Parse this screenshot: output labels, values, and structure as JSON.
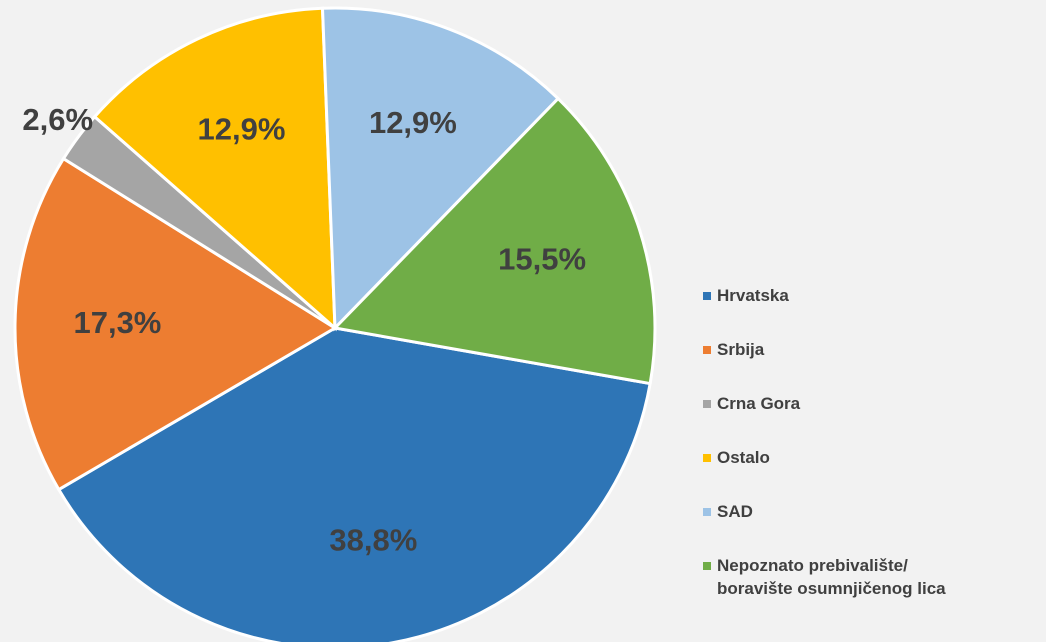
{
  "chart_data": {
    "type": "pie",
    "categories": [
      "Hrvatska",
      "Srbija",
      "Crna Gora",
      "Ostalo",
      "SAD",
      "Nepoznato prebivalište/ boravište osumnjičenog lica"
    ],
    "values": [
      38.8,
      17.3,
      2.6,
      12.9,
      12.9,
      15.5
    ],
    "value_labels": [
      "38,8%",
      "17,3%",
      "2,6%",
      "12,9%",
      "12,9%",
      "15,5%"
    ],
    "colors": [
      "#2e75b6",
      "#ed7d31",
      "#a5a5a5",
      "#ffc000",
      "#9dc3e6",
      "#70ad47"
    ],
    "legend": "right"
  }
}
